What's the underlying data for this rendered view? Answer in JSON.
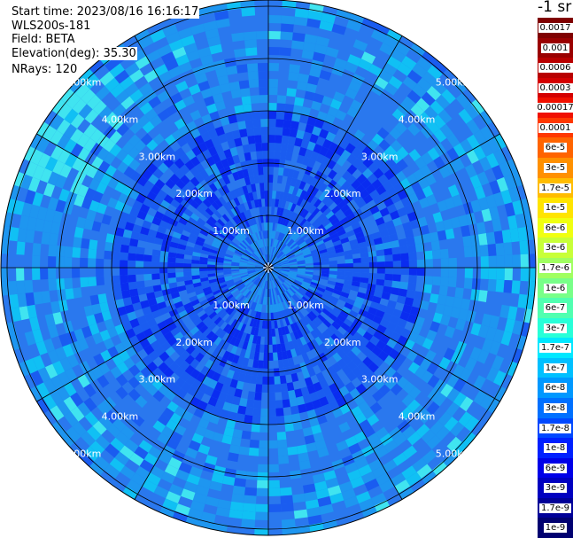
{
  "header": {
    "start_time": "Start time: 2023/08/16 16:16:17",
    "instrument": "WLS200s-181",
    "field": "Field: BETA",
    "elevation": "Elevation(deg): 35.30",
    "nrays": "NRays: 120"
  },
  "colorbar": {
    "unit_title": "-1 sr",
    "entries": [
      {
        "label": "0.0017",
        "color": "#7f0000"
      },
      {
        "label": "0.001",
        "color": "#9a0000"
      },
      {
        "label": "0.0006",
        "color": "#b80000"
      },
      {
        "label": "0.0003",
        "color": "#d40000"
      },
      {
        "label": "0.00017",
        "color": "#f01000"
      },
      {
        "label": "0.0001",
        "color": "#ff3800"
      },
      {
        "label": "6e-5",
        "color": "#ff6400"
      },
      {
        "label": "3e-5",
        "color": "#ff9000"
      },
      {
        "label": "1.7e-5",
        "color": "#ffbc00"
      },
      {
        "label": "1e-5",
        "color": "#ffe400"
      },
      {
        "label": "6e-6",
        "color": "#f0ff10"
      },
      {
        "label": "3e-6",
        "color": "#c8ff38"
      },
      {
        "label": "1.7e-6",
        "color": "#a0ff60"
      },
      {
        "label": "1e-6",
        "color": "#78ff88"
      },
      {
        "label": "6e-7",
        "color": "#50ffb0"
      },
      {
        "label": "3e-7",
        "color": "#28ffd8"
      },
      {
        "label": "1.7e-7",
        "color": "#00e8ff"
      },
      {
        "label": "1e-7",
        "color": "#00c0ff"
      },
      {
        "label": "6e-8",
        "color": "#0098ff"
      },
      {
        "label": "3e-8",
        "color": "#0070ff"
      },
      {
        "label": "1.7e-8",
        "color": "#0048ff"
      },
      {
        "label": "1e-8",
        "color": "#0020ff"
      },
      {
        "label": "6e-9",
        "color": "#0000e8"
      },
      {
        "label": "3e-9",
        "color": "#0000c0"
      },
      {
        "label": "1.7e-9",
        "color": "#000098"
      },
      {
        "label": "1e-9",
        "color": "#000070"
      }
    ]
  },
  "ppi": {
    "ring_labels": [
      "1.00km",
      "2.00km",
      "3.00km",
      "4.00km",
      "5.00km"
    ],
    "ray_count": 120,
    "spoke_angles_deg": [
      0,
      30,
      60,
      90,
      120,
      150,
      180,
      210,
      240,
      270,
      300,
      330
    ],
    "palette": {
      "dark_blue": "#0a2cf0",
      "mid_blue": "#1a5cf0",
      "blue": "#2a78ee",
      "light_blue": "#1e96f0",
      "cyan": "#10c0f4",
      "pale_cyan": "#40e4f0"
    }
  }
}
